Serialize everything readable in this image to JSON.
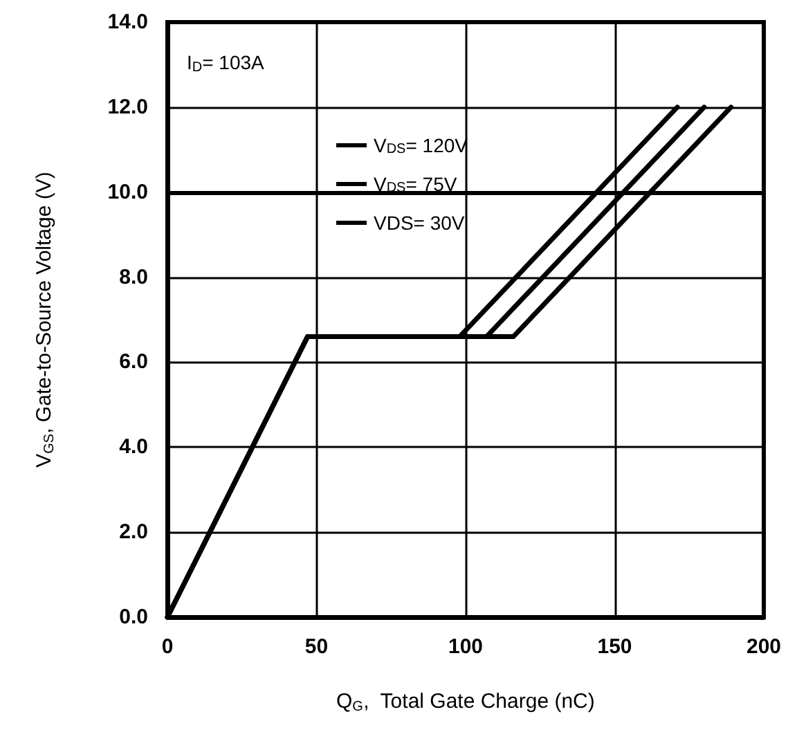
{
  "chart_data": {
    "type": "line",
    "xlabel": "Q$_{G}$,  Total Gate Charge (nC)",
    "ylabel": "V$_{GS}$, Gate-to-Source Voltage (V)",
    "annotations": [
      "I$_{D}$= 103A"
    ],
    "xlim": [
      0,
      200
    ],
    "xticks": [
      0,
      50,
      100,
      150,
      200
    ],
    "ylim": [
      0,
      14
    ],
    "yticks": [
      {
        "value": 0,
        "label": "0.0"
      },
      {
        "value": 2,
        "label": "2.0"
      },
      {
        "value": 4,
        "label": "4.0"
      },
      {
        "value": 6,
        "label": "6.0"
      },
      {
        "value": 8,
        "label": "8.0"
      },
      {
        "value": 10,
        "label": "10.0"
      },
      {
        "value": 12,
        "label": "12.0"
      },
      {
        "value": 14,
        "label": "14.0"
      }
    ],
    "grid": true,
    "legend": "top",
    "marker": "none",
    "line_style": "solid",
    "ref_lines": [
      {
        "axis": "y",
        "value": 10,
        "color": "#000000"
      }
    ],
    "series": [
      {
        "name": "V$_{DS}$= 120V",
        "color": "#000000",
        "x": [
          0,
          47,
          98,
          171
        ],
        "values": [
          0,
          6.6,
          6.6,
          12
        ]
      },
      {
        "name": "V$_{DS}$= 75V",
        "color": "#000000",
        "x": [
          0,
          47,
          107,
          180
        ],
        "values": [
          0,
          6.6,
          6.6,
          12
        ]
      },
      {
        "name": "VDS= 30V",
        "color": "#000000",
        "x": [
          0,
          47,
          116,
          189
        ],
        "values": [
          0,
          6.6,
          6.6,
          12
        ]
      }
    ]
  }
}
